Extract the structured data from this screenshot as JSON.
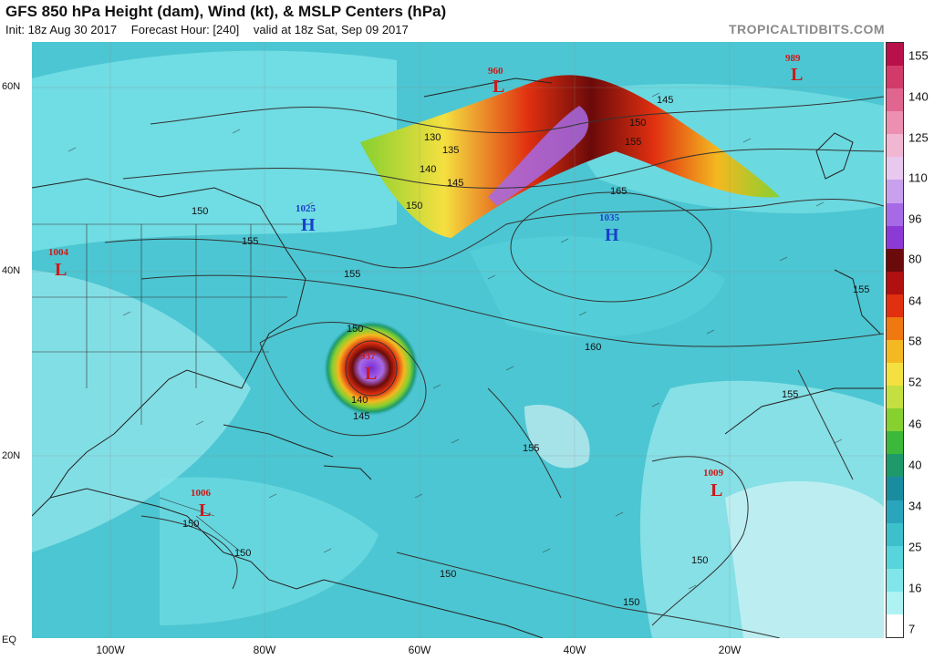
{
  "header": {
    "title": "GFS 850 hPa Height (dam), Wind (kt), & MSLP Centers (hPa)",
    "init": "Init: 18z Aug 30 2017",
    "forecast_hour": "Forecast Hour: [240]",
    "valid": "valid at 18z Sat, Sep 09 2017",
    "credit": "TROPICALTIDBITS.COM"
  },
  "map": {
    "lat_labels": [
      "60N",
      "40N",
      "20N",
      "EQ"
    ],
    "lon_labels": [
      "100W",
      "80W",
      "60W",
      "40W",
      "20W"
    ],
    "pressure_centers": [
      {
        "type": "L",
        "value": "960",
        "color": "#cc1a1a"
      },
      {
        "type": "L",
        "value": "989",
        "color": "#cc1a1a"
      },
      {
        "type": "H",
        "value": "1025",
        "color": "#1a3fcc"
      },
      {
        "type": "H",
        "value": "1035",
        "color": "#1a3fcc"
      },
      {
        "type": "L",
        "value": "1004",
        "color": "#cc1a1a"
      },
      {
        "type": "L",
        "value": "937",
        "color": "#cc1a1a"
      },
      {
        "type": "L",
        "value": "1006",
        "color": "#cc1a1a"
      },
      {
        "type": "L",
        "value": "1009",
        "color": "#cc1a1a"
      }
    ],
    "contour_labels": [
      "130",
      "135",
      "140",
      "145",
      "145",
      "150",
      "150",
      "150",
      "150",
      "155",
      "155",
      "155",
      "155",
      "155",
      "155",
      "160",
      "165",
      "145",
      "150",
      "150",
      "150",
      "150",
      "150",
      "150",
      "150",
      "155",
      "140",
      "145"
    ]
  },
  "colorbar": {
    "labels": [
      "155",
      "140",
      "125",
      "110",
      "96",
      "80",
      "64",
      "58",
      "52",
      "46",
      "40",
      "34",
      "25",
      "16",
      "7"
    ],
    "colors": [
      "#b8104a",
      "#d23a6a",
      "#e06690",
      "#ec8fb0",
      "#f0b6d2",
      "#e8c8ee",
      "#c8a0ee",
      "#a66ae6",
      "#8c3ad6",
      "#6a0a0a",
      "#b01010",
      "#e03010",
      "#f07810",
      "#f4b820",
      "#f4e040",
      "#c4e040",
      "#86d030",
      "#3cb83c",
      "#1e9a6a",
      "#1a8ca0",
      "#2aa6bc",
      "#3cc0cc",
      "#58d4dc",
      "#80e6ea",
      "#aef2f4",
      "#ffffff"
    ]
  }
}
